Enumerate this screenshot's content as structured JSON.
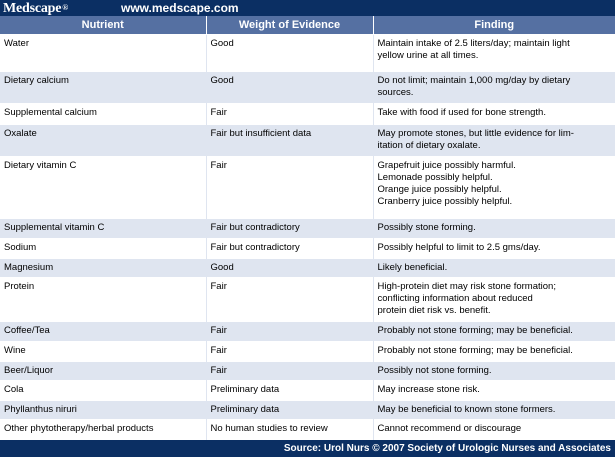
{
  "banner": {
    "logo": "Medscape",
    "logo_mark": "®",
    "url": "www.medscape.com"
  },
  "table": {
    "headers": [
      "Nutrient",
      "Weight of Evidence",
      "Finding"
    ],
    "rows": [
      {
        "nutrient": "Water",
        "evidence": "Good",
        "finding": "Maintain intake of 2.5 liters/day; maintain light\nyellow urine at all times."
      },
      {
        "nutrient": "Dietary calcium",
        "evidence": "Good",
        "finding": "Do not limit; maintain 1,000 mg/day by dietary\nsources."
      },
      {
        "nutrient": "Supplemental calcium",
        "evidence": "Fair",
        "finding": "Take with food if used for bone strength."
      },
      {
        "nutrient": "Oxalate",
        "evidence": "Fair but insufficient data",
        "finding": "May promote stones, but little evidence for lim-\nitation of dietary oxalate."
      },
      {
        "nutrient": "Dietary vitamin C",
        "evidence": "Fair",
        "finding": "Grapefruit juice possibly harmful.\nLemonade possibly helpful.\nOrange juice possibly helpful.\nCranberry juice possibly helpful."
      },
      {
        "nutrient": "Supplemental vitamin C",
        "evidence": "Fair but contradictory",
        "finding": "Possibly stone forming."
      },
      {
        "nutrient": "Sodium",
        "evidence": "Fair but contradictory",
        "finding": "Possibly helpful to limit to 2.5 gms/day."
      },
      {
        "nutrient": "Magnesium",
        "evidence": "Good",
        "finding": "Likely beneficial."
      },
      {
        "nutrient": "Protein",
        "evidence": "Fair",
        "finding": "High-protein diet may risk stone formation;\nconflicting information about reduced\nprotein diet risk vs. benefit."
      },
      {
        "nutrient": "Coffee/Tea",
        "evidence": "Fair",
        "finding": "Probably not stone forming; may be beneficial."
      },
      {
        "nutrient": "Wine",
        "evidence": "Fair",
        "finding": "Probably not stone forming; may be beneficial."
      },
      {
        "nutrient": "Beer/Liquor",
        "evidence": "Fair",
        "finding": "Possibly not stone forming."
      },
      {
        "nutrient": "Cola",
        "evidence": "Preliminary data",
        "finding": "May increase stone risk."
      },
      {
        "nutrient": "Phyllanthus niruri",
        "evidence": "Preliminary data",
        "finding": "May be beneficial to known stone formers."
      },
      {
        "nutrient": "Other phytotherapy/herbal products",
        "evidence": "No human studies to review",
        "finding": "Cannot recommend or discourage"
      }
    ]
  },
  "footer": {
    "source": "Source: Urol Nurs © 2007 Society of Urologic Nurses and Associates"
  },
  "colors": {
    "banner_background": "#0b2f63",
    "header_background": "#5570a2",
    "stripe": "#dfe5f0",
    "column_divider": "#1d3d7a"
  }
}
